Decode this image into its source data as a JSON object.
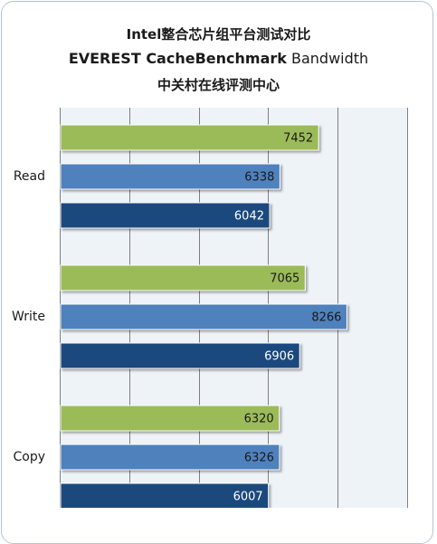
{
  "chart_data": {
    "type": "bar",
    "orientation": "horizontal",
    "title_lines": [
      "Intel整合芯片组平台测试对比",
      "EVEREST CacheBenchmark",
      "中关村在线评测中心"
    ],
    "title_suffix": "Bandwidth",
    "categories": [
      "Read",
      "Write",
      "Copy"
    ],
    "series": [
      {
        "values": [
          7452,
          7065,
          6320
        ],
        "color": "#9bbb59"
      },
      {
        "values": [
          6338,
          8266,
          6326
        ],
        "color": "#4f81bd"
      },
      {
        "values": [
          6042,
          6906,
          6007
        ],
        "color": "#1f497d"
      }
    ],
    "xlim": [
      0,
      10000
    ],
    "grid": true
  },
  "colors": {
    "plot_background": "#eef3f8",
    "grid": "#7f7f7f",
    "frame": "#b9c3cf"
  }
}
